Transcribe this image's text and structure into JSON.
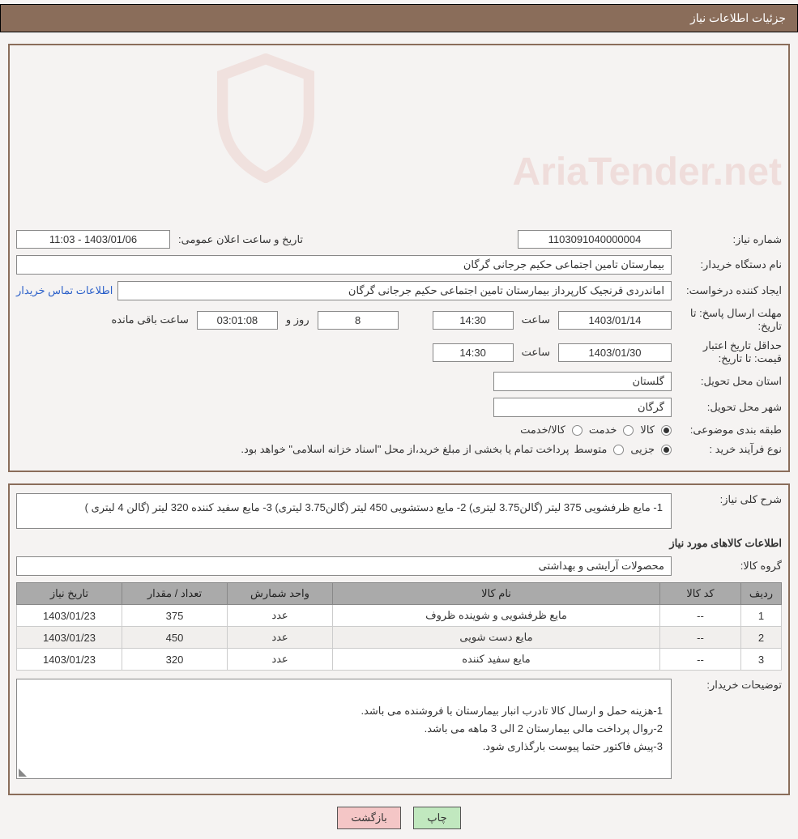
{
  "header": {
    "title": "جزئیات اطلاعات نیاز"
  },
  "watermark": {
    "text": "AriaTender.net",
    "shield_color": "#cc4a3a",
    "opacity": 0.12
  },
  "need": {
    "label_number": "شماره نیاز:",
    "number": "1103091040000004",
    "label_public_date": "تاریخ و ساعت اعلان عمومی:",
    "public_date": "1403/01/06 - 11:03",
    "label_org": "نام دستگاه خریدار:",
    "org": "بیمارستان تامین اجتماعی حکیم جرجانی گرگان",
    "label_requester": "ایجاد کننده درخواست:",
    "requester": "اماندردی قرنجیک کارپرداز بیمارستان تامین اجتماعی حکیم جرجانی گرگان",
    "contact_link": "اطلاعات تماس خریدار",
    "label_deadline": "مهلت ارسال پاسخ:",
    "label_until_date": "تا تاریخ:",
    "deadline_date": "1403/01/14",
    "label_time": "ساعت",
    "deadline_time": "14:30",
    "remain_days": "8",
    "label_days_and": "روز و",
    "remain_time": "03:01:08",
    "label_remaining": "ساعت باقی مانده",
    "label_price_valid": "حداقل تاریخ اعتبار قیمت:",
    "price_valid_date": "1403/01/30",
    "price_valid_time": "14:30",
    "label_province": "استان محل تحویل:",
    "province": "گلستان",
    "label_city": "شهر محل تحویل:",
    "city": "گرگان",
    "label_category": "طبقه بندی موضوعی:",
    "cat_goods": "کالا",
    "cat_service": "خدمت",
    "cat_goods_service": "کالا/خدمت",
    "label_proc_type": "نوع فرآیند خرید :",
    "proc_partial": "جزیی",
    "proc_medium": "متوسط",
    "proc_note": "پرداخت تمام یا بخشی از مبلغ خرید،از محل \"اسناد خزانه اسلامی\" خواهد بود."
  },
  "detail": {
    "label_desc": "شرح کلی نیاز:",
    "desc": "1- مایع ظرفشویی    375 لیتر  (گالن3.75 لیتری) 2- مایع دستشویی    450 لیتر (گالن3.75 لیتری) 3- مایع سفید کننده    320 لیتر (گالن 4 لیتری  )",
    "section_title": "اطلاعات کالاهای مورد نیاز",
    "label_group": "گروه کالا:",
    "group": "محصولات آرایشی و بهداشتی"
  },
  "table": {
    "headers": {
      "row": "ردیف",
      "code": "کد کالا",
      "name": "نام کالا",
      "unit": "واحد شمارش",
      "qty": "تعداد / مقدار",
      "date": "تاریخ نیاز"
    },
    "rows": [
      {
        "n": "1",
        "code": "--",
        "name": "مایع ظرفشویی و شوینده ظروف",
        "unit": "عدد",
        "qty": "375",
        "date": "1403/01/23"
      },
      {
        "n": "2",
        "code": "--",
        "name": "مایع دست شویی",
        "unit": "عدد",
        "qty": "450",
        "date": "1403/01/23"
      },
      {
        "n": "3",
        "code": "--",
        "name": "مایع سفید کننده",
        "unit": "عدد",
        "qty": "320",
        "date": "1403/01/23"
      }
    ]
  },
  "notes": {
    "label": "توضیحات خریدار:",
    "text": "1-هزینه حمل و ارسال کالا تادرب انبار بیمارستان با فروشنده می باشد.\n2-روال پرداخت مالی بیمارستان 2 الی 3 ماهه می باشد.\n3-پیش فاکتور حتما پیوست بارگذاری شود."
  },
  "buttons": {
    "print": "چاپ",
    "back": "بازگشت"
  },
  "colors": {
    "header_bg": "#8a6d5a",
    "panel_border": "#8a6d5a",
    "table_header_bg": "#aaaaaa",
    "btn_print_bg": "#c1e8bf",
    "btn_back_bg": "#f4c6c6",
    "link_color": "#2a5fc9",
    "body_bg": "#f5f3f2"
  }
}
